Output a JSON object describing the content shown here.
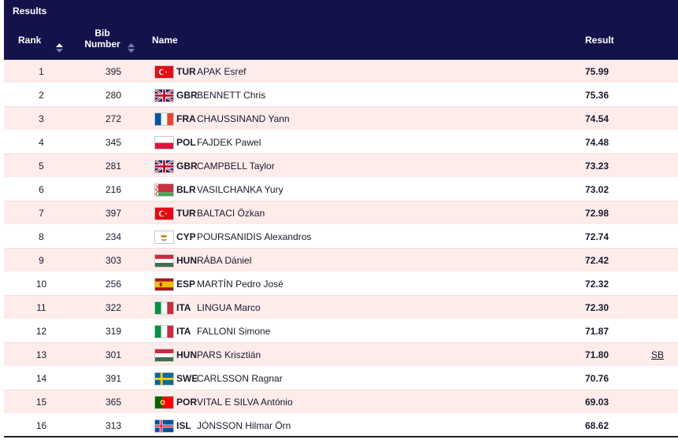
{
  "table": {
    "title": "Results",
    "headers": {
      "rank": "Rank",
      "bib": "Bib\nNumber",
      "bib_line1": "Bib",
      "bib_line2": "Number",
      "name": "Name",
      "result": "Result"
    },
    "rows": [
      {
        "rank": "1",
        "bib": "395",
        "country": "TUR",
        "name": "APAK Esref",
        "result": "75.99",
        "note": "",
        "flag": "tur-flag-icon"
      },
      {
        "rank": "2",
        "bib": "280",
        "country": "GBR",
        "name": "BENNETT Chris",
        "result": "75.36",
        "note": "",
        "flag": "gbr-flag-icon"
      },
      {
        "rank": "3",
        "bib": "272",
        "country": "FRA",
        "name": "CHAUSSINAND Yann",
        "result": "74.54",
        "note": "",
        "flag": "fra-flag-icon"
      },
      {
        "rank": "4",
        "bib": "345",
        "country": "POL",
        "name": "FAJDEK Pawel",
        "result": "74.48",
        "note": "",
        "flag": "pol-flag-icon"
      },
      {
        "rank": "5",
        "bib": "281",
        "country": "GBR",
        "name": "CAMPBELL Taylor",
        "result": "73.23",
        "note": "",
        "flag": "gbr-flag-icon"
      },
      {
        "rank": "6",
        "bib": "216",
        "country": "BLR",
        "name": "VASILCHANKA Yury",
        "result": "73.02",
        "note": "",
        "flag": "blr-flag-icon"
      },
      {
        "rank": "7",
        "bib": "397",
        "country": "TUR",
        "name": "BALTACI Özkan",
        "result": "72.98",
        "note": "",
        "flag": "tur-flag-icon"
      },
      {
        "rank": "8",
        "bib": "234",
        "country": "CYP",
        "name": "POURSANIDIS Alexandros",
        "result": "72.74",
        "note": "",
        "flag": "cyp-flag-icon"
      },
      {
        "rank": "9",
        "bib": "303",
        "country": "HUN",
        "name": "RÁBA Dániel",
        "result": "72.42",
        "note": "",
        "flag": "hun-flag-icon"
      },
      {
        "rank": "10",
        "bib": "256",
        "country": "ESP",
        "name": "MARTÍN Pedro José",
        "result": "72.32",
        "note": "",
        "flag": "esp-flag-icon"
      },
      {
        "rank": "11",
        "bib": "322",
        "country": "ITA",
        "name": "LINGUA Marco",
        "result": "72.30",
        "note": "",
        "flag": "ita-flag-icon"
      },
      {
        "rank": "12",
        "bib": "319",
        "country": "ITA",
        "name": "FALLONI Simone",
        "result": "71.87",
        "note": "",
        "flag": "ita-flag-icon"
      },
      {
        "rank": "13",
        "bib": "301",
        "country": "HUN",
        "name": "PARS Krisztián",
        "result": "71.80",
        "note": "SB",
        "flag": "hun-flag-icon"
      },
      {
        "rank": "14",
        "bib": "391",
        "country": "SWE",
        "name": "CARLSSON Ragnar",
        "result": "70.76",
        "note": "",
        "flag": "swe-flag-icon"
      },
      {
        "rank": "15",
        "bib": "365",
        "country": "POR",
        "name": "VITAL E SILVA António",
        "result": "69.03",
        "note": "",
        "flag": "por-flag-icon"
      },
      {
        "rank": "16",
        "bib": "313",
        "country": "ISL",
        "name": "JÓNSSON Hilmar Örn",
        "result": "68.62",
        "note": "",
        "flag": "isl-flag-icon"
      }
    ]
  },
  "colors": {
    "header_bg": "#14124a",
    "row_alt_bg": "#fdecea",
    "text": "#1a1a2e"
  }
}
